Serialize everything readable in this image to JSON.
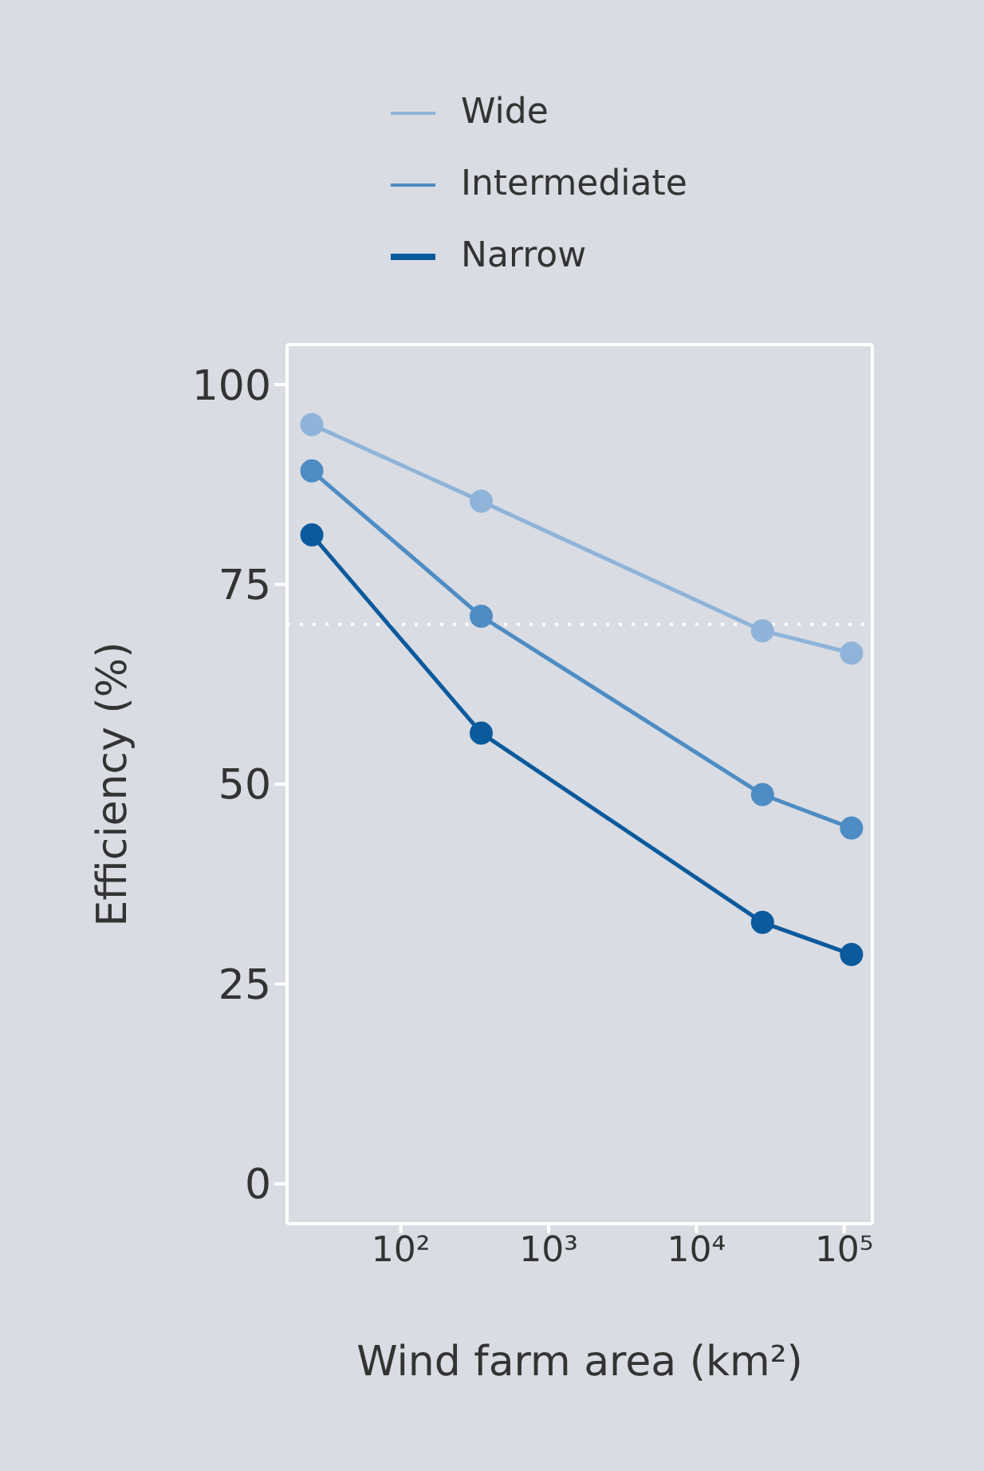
{
  "chart_data": {
    "type": "line",
    "xlabel": "Wind farm area (km²)",
    "ylabel": "Efficiency (%)",
    "log": "x",
    "xlim": [
      17,
      155000
    ],
    "xticks": [
      {
        "value": 100,
        "label": "10²"
      },
      {
        "value": 1000,
        "label": "10³"
      },
      {
        "value": 10000,
        "label": "10⁴"
      },
      {
        "value": 100000,
        "label": "10⁵"
      }
    ],
    "ylim": [
      -5,
      105
    ],
    "yticks": [
      0,
      25,
      50,
      75,
      100
    ],
    "legend": "top",
    "marker": "circle",
    "line_style": "solid",
    "ref_lines": [
      {
        "axis": "y",
        "value": 70,
        "color": "#ffffff",
        "line_style": "dotted"
      }
    ],
    "series": [
      {
        "name": "Wide",
        "color": "#8fb4d9",
        "x": [
          25,
          350,
          28000,
          112000
        ],
        "values": [
          95,
          85.4,
          69.2,
          66.4
        ]
      },
      {
        "name": "Intermediate",
        "color": "#4d8cc4",
        "x": [
          25,
          350,
          28000,
          112000
        ],
        "values": [
          89.2,
          71,
          48.7,
          44.5
        ]
      },
      {
        "name": "Narrow",
        "color": "#0a5a9c",
        "x": [
          25,
          350,
          28000,
          112000
        ],
        "values": [
          81.2,
          56.4,
          32.7,
          28.7
        ]
      }
    ]
  }
}
